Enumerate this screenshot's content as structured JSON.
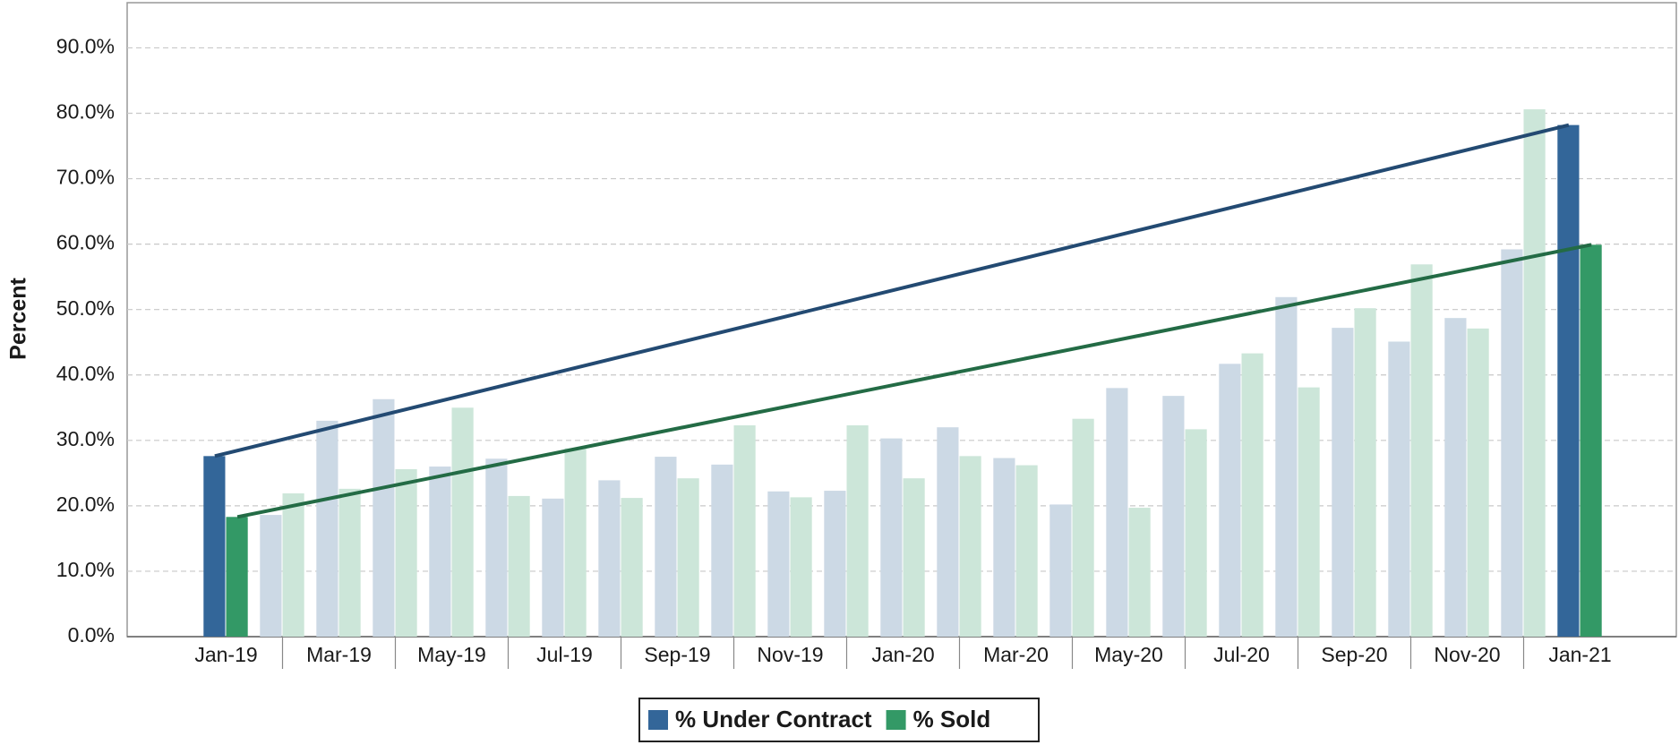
{
  "chart_data": {
    "type": "bar",
    "y_label": "Percent",
    "categories": [
      "Jan-19",
      null,
      "Mar-19",
      null,
      "May-19",
      null,
      "Jul-19",
      null,
      "Sep-19",
      null,
      "Nov-19",
      null,
      "Jan-20",
      null,
      "Mar-20",
      null,
      "May-20",
      null,
      "Jul-20",
      null,
      "Sep-20",
      null,
      "Nov-20",
      null,
      "Jan-21"
    ],
    "series": [
      {
        "name": "% Under Contract",
        "color": "#336699",
        "faded_color": "#ccd9e5",
        "trend_color": "#234a72",
        "values": [
          27.6,
          18.6,
          33.0,
          36.3,
          26.0,
          27.2,
          21.1,
          23.9,
          27.5,
          26.3,
          22.2,
          22.3,
          30.3,
          32.0,
          27.3,
          20.2,
          38.0,
          36.8,
          41.7,
          51.9,
          47.2,
          45.1,
          48.7,
          59.2,
          78.2
        ]
      },
      {
        "name": "% Sold",
        "color": "#339966",
        "faded_color": "#cce6d9",
        "trend_color": "#236b45",
        "values": [
          18.3,
          21.9,
          22.6,
          25.6,
          35.0,
          21.5,
          28.8,
          21.2,
          24.2,
          32.3,
          21.3,
          32.3,
          24.2,
          27.6,
          26.2,
          33.3,
          19.7,
          31.7,
          43.3,
          38.1,
          50.2,
          56.9,
          47.1,
          80.6,
          59.9
        ]
      }
    ],
    "ylim": [
      0,
      96.9
    ],
    "yticks": [
      {
        "value": 0,
        "label": "0.0%"
      },
      {
        "value": 10,
        "label": "10.0%"
      },
      {
        "value": 20,
        "label": "20.0%"
      },
      {
        "value": 30,
        "label": "30.0%"
      },
      {
        "value": 40,
        "label": "40.0%"
      },
      {
        "value": 50,
        "label": "50.0%"
      },
      {
        "value": 60,
        "label": "60.0%"
      },
      {
        "value": 70,
        "label": "70.0%"
      },
      {
        "value": 80,
        "label": "80.0%"
      },
      {
        "value": 90,
        "label": "90.0%"
      }
    ],
    "grid": true
  }
}
